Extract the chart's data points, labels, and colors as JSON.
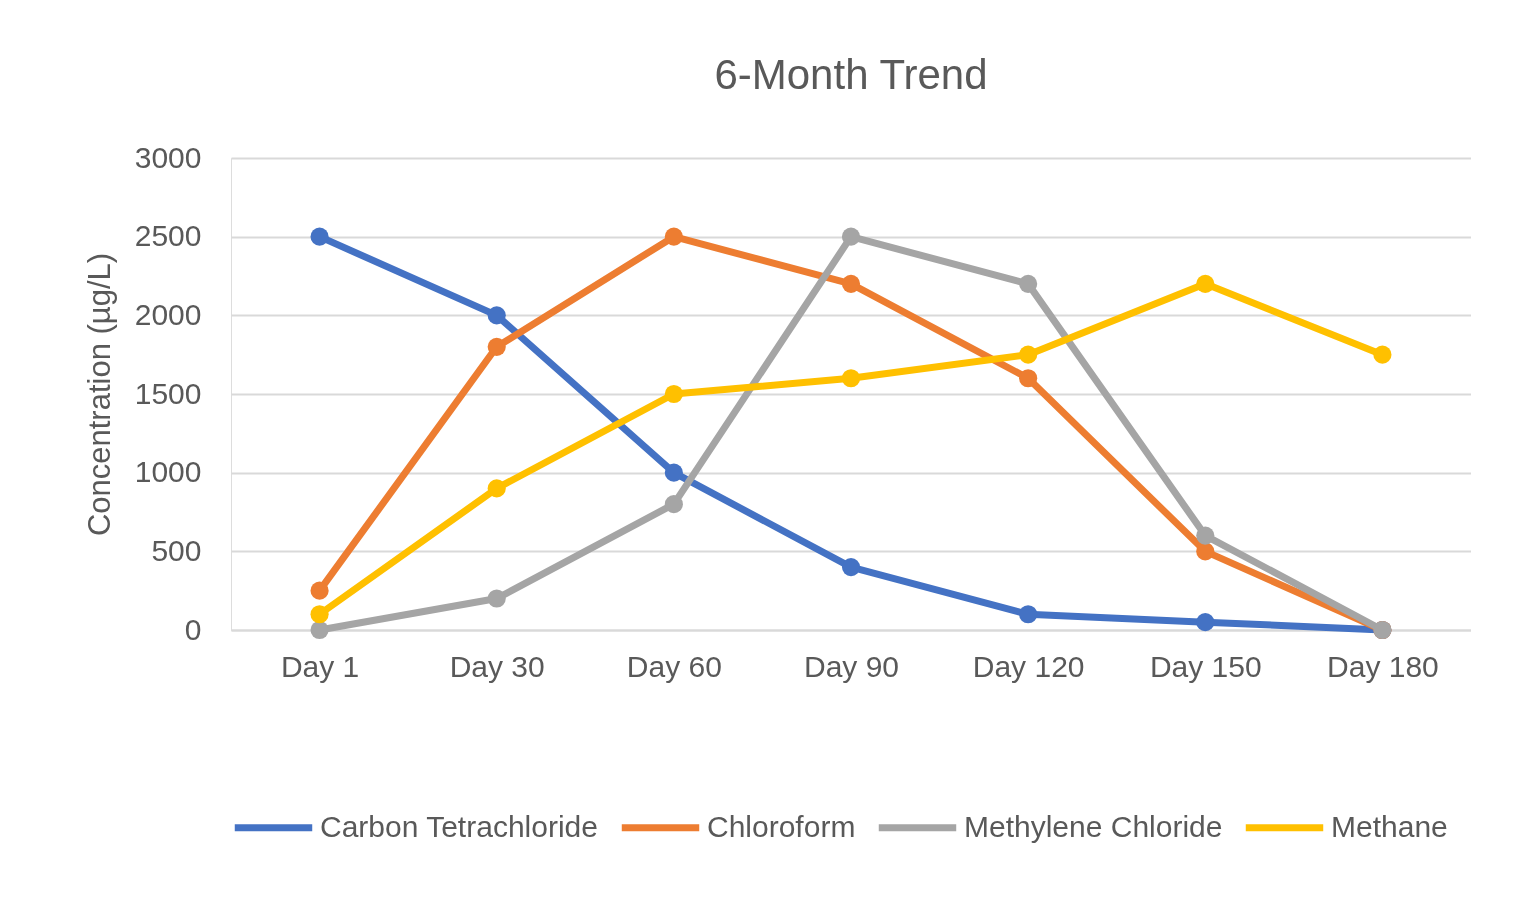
{
  "chart_data": {
    "type": "line",
    "title": "6-Month Trend",
    "ylabel": "Concentration (µg/L)",
    "categories": [
      "Day 1",
      "Day 30",
      "Day 60",
      "Day 90",
      "Day 120",
      "Day 150",
      "Day 180"
    ],
    "series": [
      {
        "name": "Carbon Tetrachloride",
        "color": "#4472c4",
        "values": [
          2500,
          2000,
          1000,
          400,
          100,
          50,
          0
        ]
      },
      {
        "name": "Chloroform",
        "color": "#ed7d31",
        "values": [
          250,
          1800,
          2500,
          2200,
          1600,
          500,
          0
        ]
      },
      {
        "name": "Methylene Chloride",
        "color": "#a5a5a5",
        "values": [
          0,
          200,
          800,
          2500,
          2200,
          600,
          0
        ]
      },
      {
        "name": "Methane",
        "color": "#ffc000",
        "values": [
          100,
          900,
          1500,
          1600,
          1750,
          2200,
          1750
        ]
      }
    ],
    "ylim": [
      0,
      3000
    ],
    "yticks": [
      0,
      500,
      1000,
      1500,
      2000,
      2500,
      3000
    ],
    "grid": "y",
    "legend": "bottom",
    "marker": "circle",
    "line_style": "solid"
  }
}
